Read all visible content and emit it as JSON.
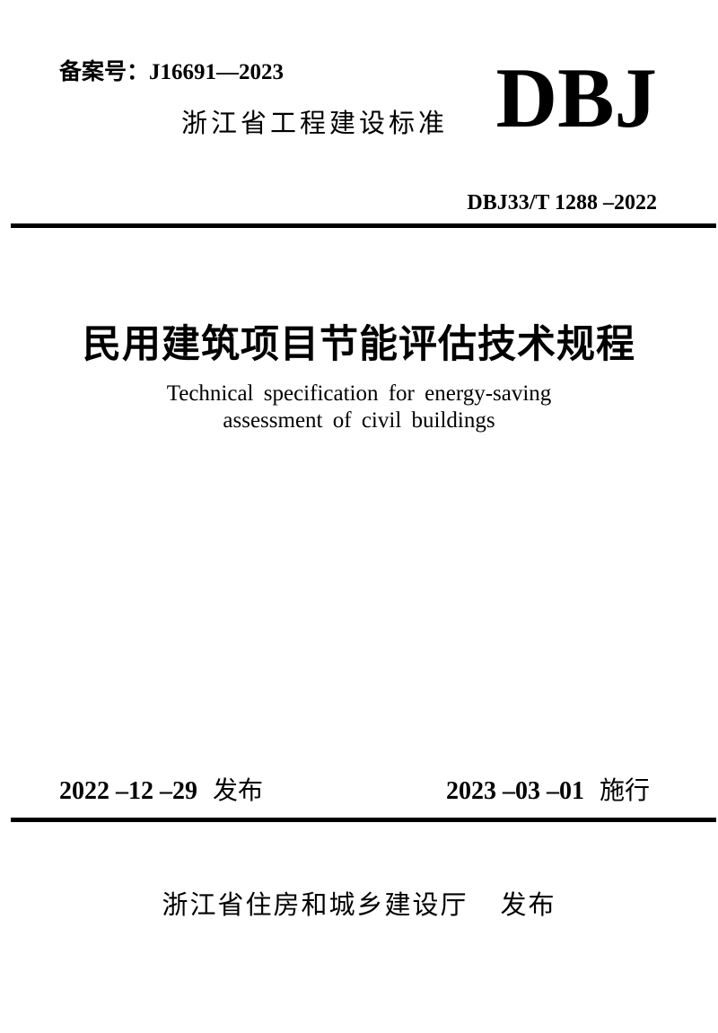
{
  "colors": {
    "text": "#000000",
    "background": "#ffffff",
    "rule": "#000000"
  },
  "header": {
    "record_number": "备案号：J16691—2023",
    "standard_category": "浙江省工程建设标准",
    "standard_code_large": "DBJ",
    "standard_number": "DBJ33/T 1288 –2022"
  },
  "title": {
    "chinese": "民用建筑项目节能评估技术规程",
    "english_line1": "Technical specification for energy-saving",
    "english_line2": "assessment of civil buildings"
  },
  "dates": {
    "issue_date": "2022 –12 –29",
    "issue_label": "发布",
    "effective_date": "2023 –03 –01",
    "effective_label": "施行"
  },
  "footer": {
    "publisher": "浙江省住房和城乡建设厅",
    "publish_label": "发布"
  }
}
